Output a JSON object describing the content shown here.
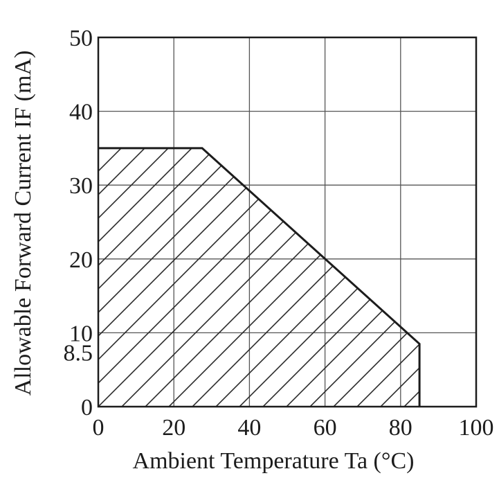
{
  "chart_data": {
    "type": "area",
    "title": "",
    "xlabel": "Ambient Temperature Ta (°C)",
    "ylabel": "Allowable Forward Current IF (mA)",
    "xlim": [
      0,
      100
    ],
    "ylim": [
      0,
      50
    ],
    "x_ticks": [
      0,
      20,
      40,
      60,
      80,
      100
    ],
    "y_ticks": [
      0,
      10,
      20,
      30,
      40,
      50
    ],
    "x_tick_labels": [
      "0",
      "20",
      "40",
      "60",
      "80",
      "100"
    ],
    "y_tick_labels": [
      "0",
      "10",
      "20",
      "30",
      "40",
      "50"
    ],
    "extra_y_tick_labels": [
      {
        "value": 8.5,
        "label": "8.5"
      }
    ],
    "grid": true,
    "fill_pattern": "diagonal-hatch",
    "series": [
      {
        "x": [
          0,
          27.5,
          85,
          85
        ],
        "y": [
          35,
          35,
          8.5,
          0
        ]
      }
    ],
    "colors": {
      "line": "#1c1c1c",
      "grid": "#555555",
      "hatch": "#2a2a2a",
      "background": "#ffffff"
    }
  }
}
